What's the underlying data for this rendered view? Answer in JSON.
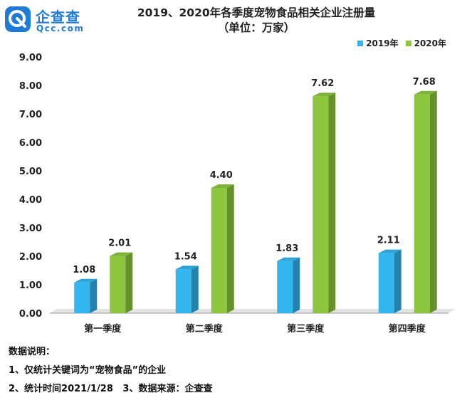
{
  "logo": {
    "name_cn": "企查查",
    "name_en": "Qcc.com"
  },
  "colors": {
    "s2019": "#33b5ee",
    "s2020": "#8dc63f"
  },
  "chart_data": {
    "type": "bar",
    "title": "2019、2020年各季度宠物食品相关企业注册量",
    "subtitle": "（单位：万家）",
    "categories": [
      "第一季度",
      "第二季度",
      "第三季度",
      "第四季度"
    ],
    "series": [
      {
        "name": "2019年",
        "values": [
          1.08,
          1.54,
          1.83,
          2.11
        ]
      },
      {
        "name": "2020年",
        "values": [
          2.01,
          4.4,
          7.62,
          7.68
        ]
      }
    ],
    "ylim": [
      0,
      9
    ],
    "yticks": [
      "0.00",
      "1.00",
      "2.00",
      "3.00",
      "4.00",
      "5.00",
      "6.00",
      "7.00",
      "8.00",
      "9.00"
    ],
    "value_labels": [
      [
        "1.08",
        "1.54",
        "1.83",
        "2.11"
      ],
      [
        "2.01",
        "4.40",
        "7.62",
        "7.68"
      ]
    ],
    "legend_position": "top-right",
    "grid": false
  },
  "notes": {
    "heading": "数据说明：",
    "line1": "1、仅统计关键词为“宠物食品”的企业",
    "line2": "2、统计时间2021/1/28   3、数据来源：企查查"
  }
}
